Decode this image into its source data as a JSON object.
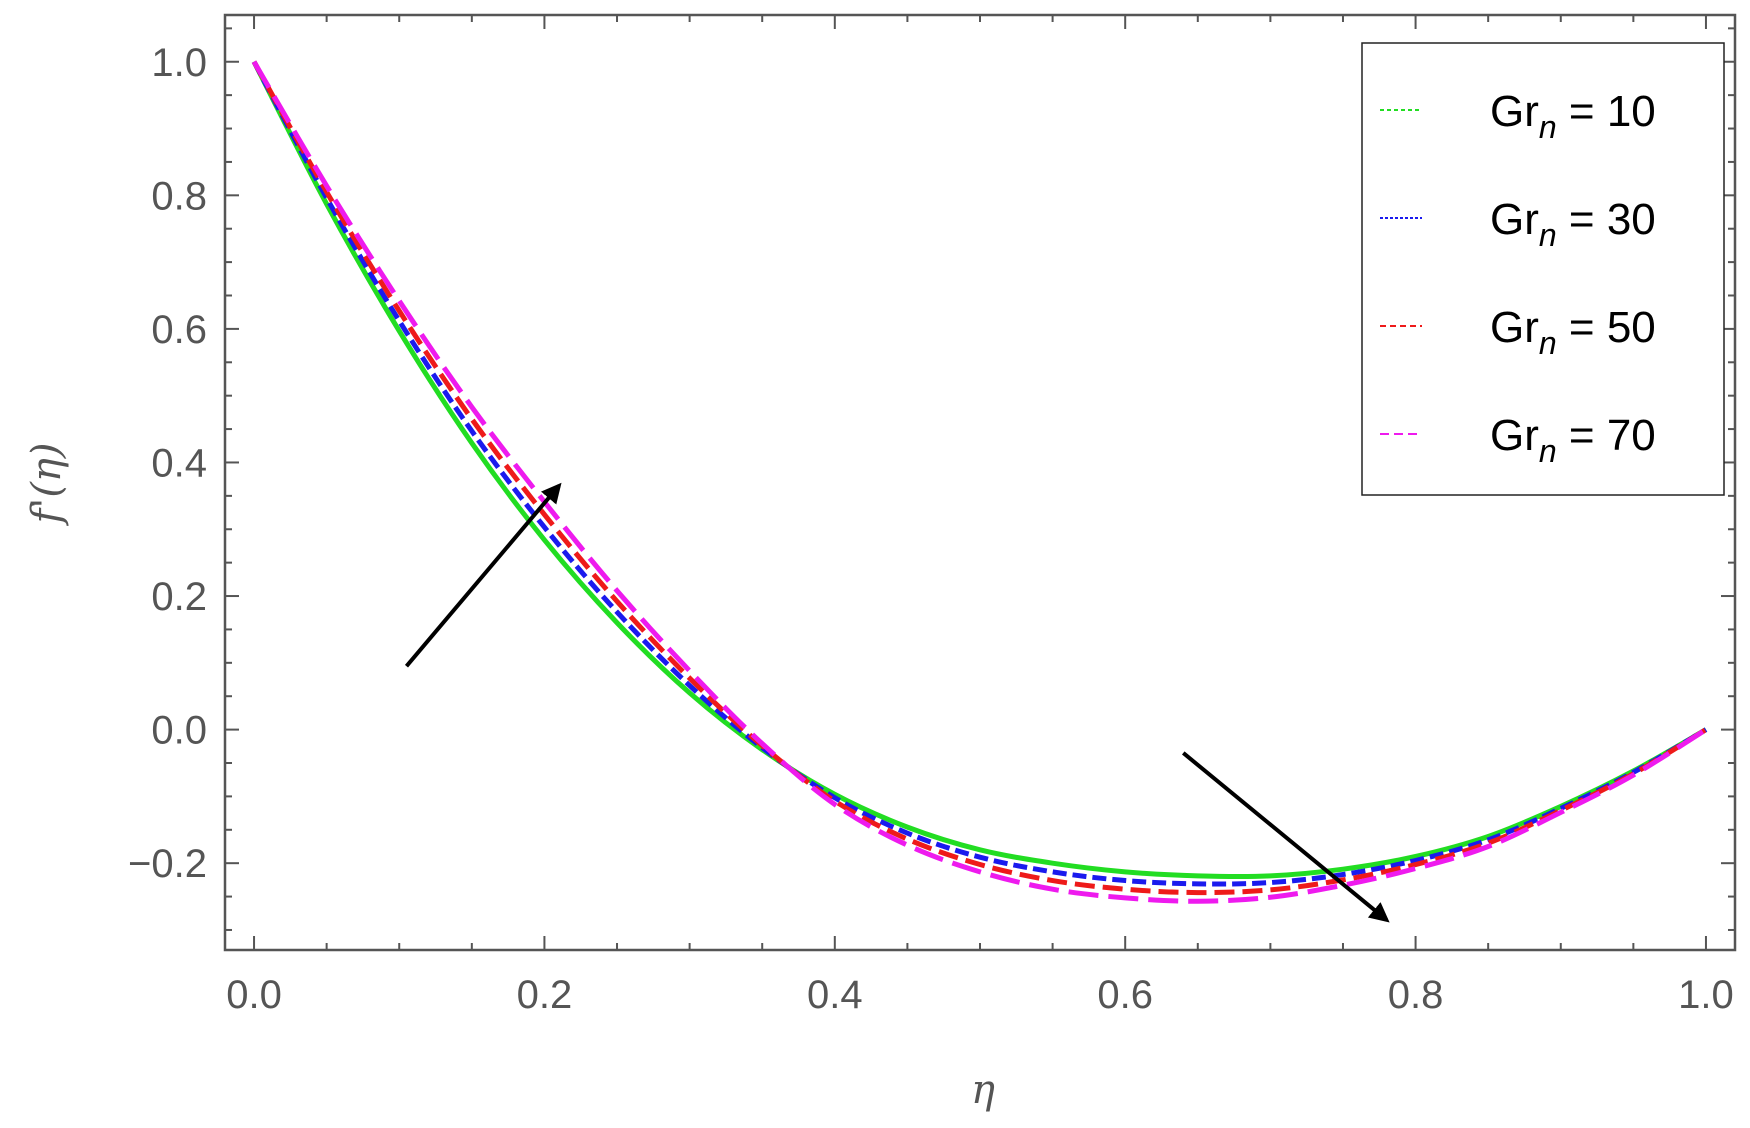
{
  "chart_data": {
    "type": "line",
    "xlabel": "η",
    "ylabel": "f'(η)",
    "xlim": [
      -0.02,
      1.02
    ],
    "ylim": [
      -0.33,
      1.07
    ],
    "x_ticks": [
      "0.0",
      "0.2",
      "0.4",
      "0.6",
      "0.8",
      "1.0"
    ],
    "x_tick_values": [
      0.0,
      0.2,
      0.4,
      0.6,
      0.8,
      1.0
    ],
    "y_ticks": [
      "−0.2",
      "0.0",
      "0.2",
      "0.4",
      "0.6",
      "0.8",
      "1.0"
    ],
    "y_tick_values": [
      -0.2,
      0.0,
      0.2,
      0.4,
      0.6,
      0.8,
      1.0
    ],
    "grid": false,
    "legend_position": "top-right",
    "series": [
      {
        "legend_main": "Gr",
        "legend_sub": "n",
        "legend_value": " = 10",
        "color": "#22dd22",
        "dash": "solid",
        "x": [
          0,
          0.05,
          0.1,
          0.15,
          0.2,
          0.25,
          0.3,
          0.35,
          0.4,
          0.45,
          0.5,
          0.55,
          0.6,
          0.65,
          0.7,
          0.75,
          0.8,
          0.85,
          0.9,
          0.95,
          1.0
        ],
        "y": [
          1.0,
          0.787,
          0.597,
          0.429,
          0.284,
          0.16,
          0.055,
          -0.03,
          -0.097,
          -0.146,
          -0.18,
          -0.2,
          -0.213,
          -0.219,
          -0.219,
          -0.209,
          -0.19,
          -0.16,
          -0.115,
          -0.062,
          0.0
        ]
      },
      {
        "legend_main": "Gr",
        "legend_sub": "n",
        "legend_value": " = 30",
        "color": "#1a1aee",
        "dash": "short",
        "x": [
          0,
          0.05,
          0.1,
          0.15,
          0.2,
          0.25,
          0.3,
          0.35,
          0.4,
          0.45,
          0.5,
          0.55,
          0.6,
          0.65,
          0.7,
          0.75,
          0.8,
          0.85,
          0.9,
          0.95,
          1.0
        ],
        "y": [
          1.0,
          0.796,
          0.612,
          0.447,
          0.303,
          0.176,
          0.066,
          -0.027,
          -0.102,
          -0.155,
          -0.191,
          -0.213,
          -0.226,
          -0.231,
          -0.229,
          -0.217,
          -0.196,
          -0.165,
          -0.118,
          -0.064,
          0.0
        ]
      },
      {
        "legend_main": "Gr",
        "legend_sub": "n",
        "legend_value": " = 50",
        "color": "#ee1a1a",
        "dash": "medium",
        "x": [
          0,
          0.05,
          0.1,
          0.15,
          0.2,
          0.25,
          0.3,
          0.35,
          0.4,
          0.45,
          0.5,
          0.55,
          0.6,
          0.65,
          0.7,
          0.75,
          0.8,
          0.85,
          0.9,
          0.95,
          1.0
        ],
        "y": [
          1.0,
          0.805,
          0.627,
          0.465,
          0.322,
          0.192,
          0.077,
          -0.024,
          -0.107,
          -0.164,
          -0.202,
          -0.226,
          -0.239,
          -0.244,
          -0.24,
          -0.225,
          -0.202,
          -0.17,
          -0.121,
          -0.066,
          0.0
        ]
      },
      {
        "legend_main": "Gr",
        "legend_sub": "n",
        "legend_value": " = 70",
        "color": "#ee1aee",
        "dash": "long",
        "x": [
          0,
          0.05,
          0.1,
          0.15,
          0.2,
          0.25,
          0.3,
          0.35,
          0.4,
          0.45,
          0.5,
          0.55,
          0.6,
          0.65,
          0.7,
          0.75,
          0.8,
          0.85,
          0.9,
          0.95,
          1.0
        ],
        "y": [
          1.0,
          0.814,
          0.642,
          0.483,
          0.341,
          0.208,
          0.088,
          -0.021,
          -0.112,
          -0.173,
          -0.213,
          -0.239,
          -0.252,
          -0.257,
          -0.251,
          -0.233,
          -0.208,
          -0.175,
          -0.124,
          -0.068,
          0.0
        ]
      }
    ],
    "annotations": [
      {
        "type": "arrow",
        "from": [
          0.105,
          0.095
        ],
        "to": [
          0.21,
          0.365
        ],
        "color": "#000000"
      },
      {
        "type": "arrow",
        "from": [
          0.64,
          -0.035
        ],
        "to": [
          0.78,
          -0.285
        ],
        "color": "#000000"
      }
    ]
  }
}
